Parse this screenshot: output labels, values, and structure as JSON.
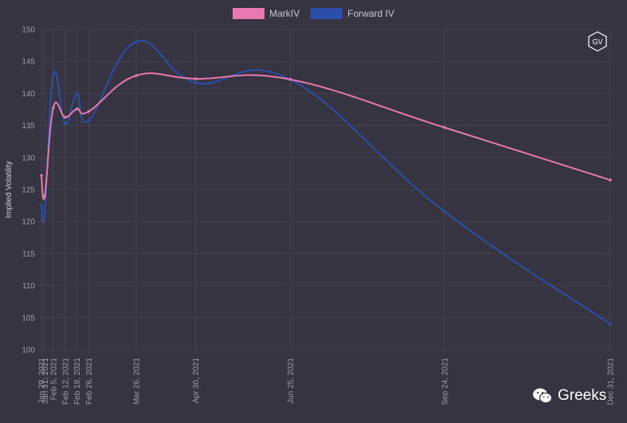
{
  "legend": {
    "series1": "MarkIV",
    "series2": "Forward IV"
  },
  "logo_text": "GV",
  "watermark": "Greeks",
  "colors": {
    "background": "#353440",
    "grid": "#44434f",
    "axis_text": "#9d9daa",
    "mark_iv": "#e879b0",
    "forward_iv": "#2b4ea8"
  },
  "chart_data": {
    "type": "line",
    "title": "",
    "xlabel": "",
    "ylabel": "Implied Volatility",
    "ylim": [
      100,
      150
    ],
    "yticks": [
      100,
      105,
      110,
      115,
      120,
      125,
      130,
      135,
      140,
      145,
      150
    ],
    "grid": true,
    "legend_position": "top",
    "x": [
      "Jan 29, 2021",
      "Jan 31, 2021",
      "Feb 5, 2021",
      "Feb 12, 2021",
      "Feb 19, 2021",
      "Feb 26, 2021",
      "Mar 26, 2021",
      "Apr 30, 2021",
      "Jun 25, 2021",
      "Sep 24, 2021",
      "Dec 31, 2021"
    ],
    "x_tick_labels": [
      "Jan 29, 2021",
      "Jan 31, 2021",
      "Feb 5, 2021",
      "Feb 12, 2021",
      "Feb 19, 2021",
      "Feb 26, 2021",
      "Mar 26, 2021",
      "Apr 30, 2021",
      "Jun 25, 2021",
      "Sep 24, 2021",
      "Dec 31, 2021"
    ],
    "series": [
      {
        "name": "MarkIV",
        "values": [
          127.2,
          124.0,
          137.8,
          136.3,
          137.6,
          137.2,
          142.8,
          142.3,
          142.2,
          134.7,
          126.5
        ]
      },
      {
        "name": "Forward IV",
        "values": [
          122.5,
          121.5,
          143.0,
          135.3,
          139.9,
          135.8,
          148.1,
          141.7,
          142.2,
          121.6,
          104.0
        ]
      }
    ]
  }
}
